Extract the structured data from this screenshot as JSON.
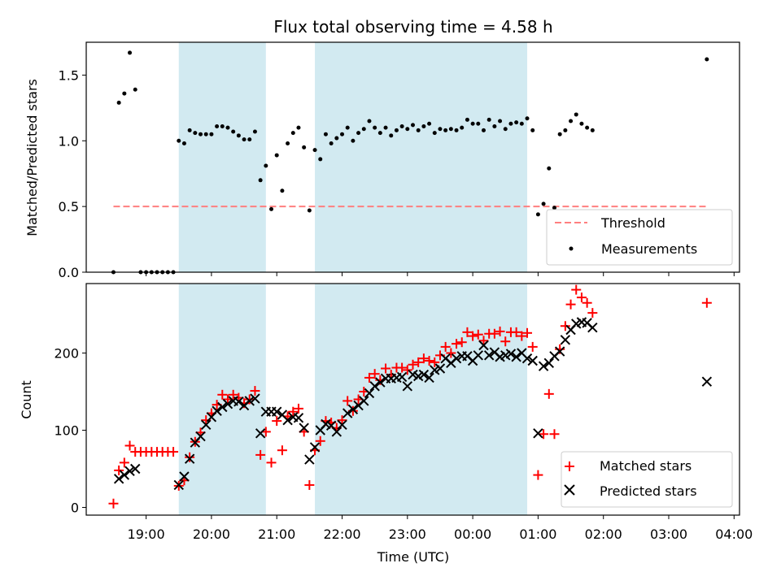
{
  "title": "Flux total observing time = 4.58 h",
  "colors": {
    "band": "#add8e6",
    "threshold": "#ff7f7f",
    "matched": "#ff0000",
    "predicted": "#000000",
    "measurement": "#000000"
  },
  "x_ticks": [
    "19:00",
    "20:00",
    "21:00",
    "22:00",
    "23:00",
    "00:00",
    "01:00",
    "02:00",
    "03:00",
    "04:00"
  ],
  "xlabel": "Time (UTC)",
  "chart_data": [
    {
      "type": "scatter",
      "ylabel": "Matched/Predicted stars",
      "ylim": [
        0,
        1.75
      ],
      "y_ticks": [
        "0.0",
        "0.5",
        "1.0",
        "1.5"
      ],
      "xlim": [
        "18:05",
        "04:05"
      ],
      "shaded_intervals": [
        [
          "19:30",
          "20:50"
        ],
        [
          "21:35",
          "00:50"
        ]
      ],
      "legend": {
        "position": "bottom-right",
        "entries": [
          "Threshold",
          "Measurements"
        ]
      },
      "threshold": {
        "name": "Threshold",
        "y": 0.5,
        "x_range": [
          "18:30",
          "03:35"
        ]
      },
      "measurements": {
        "name": "Measurements",
        "points": [
          [
            "18:30",
            0.0
          ],
          [
            "18:35",
            1.29
          ],
          [
            "18:40",
            1.36
          ],
          [
            "18:45",
            1.67
          ],
          [
            "18:50",
            1.39
          ],
          [
            "18:55",
            0.0
          ],
          [
            "19:00",
            0.0
          ],
          [
            "19:05",
            0.0
          ],
          [
            "19:10",
            0.0
          ],
          [
            "19:15",
            0.0
          ],
          [
            "19:20",
            0.0
          ],
          [
            "19:25",
            0.0
          ],
          [
            "19:30",
            1.0
          ],
          [
            "19:35",
            0.98
          ],
          [
            "19:40",
            1.08
          ],
          [
            "19:45",
            1.06
          ],
          [
            "19:50",
            1.05
          ],
          [
            "19:55",
            1.05
          ],
          [
            "20:00",
            1.05
          ],
          [
            "20:05",
            1.11
          ],
          [
            "20:10",
            1.11
          ],
          [
            "20:15",
            1.1
          ],
          [
            "20:20",
            1.07
          ],
          [
            "20:25",
            1.04
          ],
          [
            "20:30",
            1.01
          ],
          [
            "20:35",
            1.01
          ],
          [
            "20:40",
            1.07
          ],
          [
            "20:45",
            0.7
          ],
          [
            "20:50",
            0.81
          ],
          [
            "20:55",
            0.48
          ],
          [
            "21:00",
            0.89
          ],
          [
            "21:05",
            0.62
          ],
          [
            "21:10",
            0.98
          ],
          [
            "21:15",
            1.06
          ],
          [
            "21:20",
            1.1
          ],
          [
            "21:25",
            0.95
          ],
          [
            "21:30",
            0.47
          ],
          [
            "21:35",
            0.93
          ],
          [
            "21:40",
            0.86
          ],
          [
            "21:45",
            1.05
          ],
          [
            "21:50",
            0.98
          ],
          [
            "21:55",
            1.02
          ],
          [
            "22:00",
            1.05
          ],
          [
            "22:05",
            1.1
          ],
          [
            "22:10",
            1.0
          ],
          [
            "22:15",
            1.06
          ],
          [
            "22:20",
            1.09
          ],
          [
            "22:25",
            1.15
          ],
          [
            "22:30",
            1.1
          ],
          [
            "22:35",
            1.06
          ],
          [
            "22:40",
            1.1
          ],
          [
            "22:45",
            1.04
          ],
          [
            "22:50",
            1.08
          ],
          [
            "22:55",
            1.11
          ],
          [
            "23:00",
            1.09
          ],
          [
            "23:05",
            1.12
          ],
          [
            "23:10",
            1.08
          ],
          [
            "23:15",
            1.11
          ],
          [
            "23:20",
            1.13
          ],
          [
            "23:25",
            1.06
          ],
          [
            "23:30",
            1.09
          ],
          [
            "23:35",
            1.08
          ],
          [
            "23:40",
            1.09
          ],
          [
            "23:45",
            1.08
          ],
          [
            "23:50",
            1.1
          ],
          [
            "23:55",
            1.16
          ],
          [
            "00:00",
            1.13
          ],
          [
            "00:05",
            1.13
          ],
          [
            "00:10",
            1.08
          ],
          [
            "00:15",
            1.16
          ],
          [
            "00:20",
            1.11
          ],
          [
            "00:25",
            1.15
          ],
          [
            "00:30",
            1.09
          ],
          [
            "00:35",
            1.13
          ],
          [
            "00:40",
            1.14
          ],
          [
            "00:45",
            1.13
          ],
          [
            "00:50",
            1.17
          ],
          [
            "00:55",
            1.08
          ],
          [
            "01:00",
            0.44
          ],
          [
            "01:05",
            0.52
          ],
          [
            "01:10",
            0.79
          ],
          [
            "01:15",
            0.49
          ],
          [
            "01:20",
            1.05
          ],
          [
            "01:25",
            1.08
          ],
          [
            "01:30",
            1.15
          ],
          [
            "01:35",
            1.2
          ],
          [
            "01:40",
            1.13
          ],
          [
            "01:45",
            1.1
          ],
          [
            "01:50",
            1.08
          ],
          [
            "03:35",
            1.62
          ]
        ]
      }
    },
    {
      "type": "scatter",
      "ylabel": "Count",
      "ylim": [
        -10,
        290
      ],
      "y_ticks": [
        "0",
        "100",
        "200"
      ],
      "xlim": [
        "18:05",
        "04:05"
      ],
      "shaded_intervals": [
        [
          "19:30",
          "20:50"
        ],
        [
          "21:35",
          "00:50"
        ]
      ],
      "legend": {
        "position": "bottom-right",
        "entries": [
          "Matched stars",
          "Predicted stars"
        ]
      },
      "series": [
        {
          "name": "Matched stars",
          "marker": "+",
          "points": [
            [
              "18:30",
              5
            ],
            [
              "18:35",
              48
            ],
            [
              "18:40",
              58
            ],
            [
              "18:45",
              80
            ],
            [
              "18:50",
              72
            ],
            [
              "18:55",
              72
            ],
            [
              "19:00",
              72
            ],
            [
              "19:05",
              72
            ],
            [
              "19:10",
              72
            ],
            [
              "19:15",
              72
            ],
            [
              "19:20",
              72
            ],
            [
              "19:25",
              72
            ],
            [
              "19:30",
              28
            ],
            [
              "19:35",
              35
            ],
            [
              "19:40",
              65
            ],
            [
              "19:45",
              85
            ],
            [
              "19:50",
              97
            ],
            [
              "19:55",
              113
            ],
            [
              "20:00",
              122
            ],
            [
              "20:05",
              133
            ],
            [
              "20:10",
              146
            ],
            [
              "20:15",
              140
            ],
            [
              "20:20",
              146
            ],
            [
              "20:25",
              142
            ],
            [
              "20:30",
              135
            ],
            [
              "20:35",
              140
            ],
            [
              "20:40",
              151
            ],
            [
              "20:45",
              68
            ],
            [
              "20:50",
              98
            ],
            [
              "20:55",
              58
            ],
            [
              "21:00",
              112
            ],
            [
              "21:05",
              74
            ],
            [
              "21:10",
              118
            ],
            [
              "21:15",
              124
            ],
            [
              "21:20",
              128
            ],
            [
              "21:25",
              98
            ],
            [
              "21:30",
              29
            ],
            [
              "21:35",
              74
            ],
            [
              "21:40",
              86
            ],
            [
              "21:45",
              112
            ],
            [
              "21:50",
              110
            ],
            [
              "21:55",
              103
            ],
            [
              "22:00",
              113
            ],
            [
              "22:05",
              138
            ],
            [
              "22:10",
              125
            ],
            [
              "22:15",
              140
            ],
            [
              "22:20",
              150
            ],
            [
              "22:25",
              168
            ],
            [
              "22:30",
              173
            ],
            [
              "22:35",
              165
            ],
            [
              "22:40",
              180
            ],
            [
              "22:45",
              172
            ],
            [
              "22:50",
              181
            ],
            [
              "22:55",
              181
            ],
            [
              "23:00",
              178
            ],
            [
              "23:05",
              185
            ],
            [
              "23:10",
              188
            ],
            [
              "23:15",
              193
            ],
            [
              "23:20",
              190
            ],
            [
              "23:25",
              188
            ],
            [
              "23:30",
              197
            ],
            [
              "23:35",
              208
            ],
            [
              "23:40",
              200
            ],
            [
              "23:45",
              212
            ],
            [
              "23:50",
              214
            ],
            [
              "23:55",
              227
            ],
            [
              "00:00",
              222
            ],
            [
              "00:05",
              224
            ],
            [
              "00:10",
              216
            ],
            [
              "00:15",
              225
            ],
            [
              "00:20",
              225
            ],
            [
              "00:25",
              228
            ],
            [
              "00:30",
              215
            ],
            [
              "00:35",
              227
            ],
            [
              "00:40",
              227
            ],
            [
              "00:45",
              222
            ],
            [
              "00:50",
              226
            ],
            [
              "00:55",
              208
            ],
            [
              "01:00",
              42
            ],
            [
              "01:05",
              95
            ],
            [
              "01:10",
              147
            ],
            [
              "01:15",
              95
            ],
            [
              "01:20",
              205
            ],
            [
              "01:25",
              235
            ],
            [
              "01:30",
              263
            ],
            [
              "01:35",
              282
            ],
            [
              "01:40",
              272
            ],
            [
              "01:45",
              265
            ],
            [
              "01:50",
              252
            ],
            [
              "03:35",
              265
            ]
          ]
        },
        {
          "name": "Predicted stars",
          "marker": "x",
          "points": [
            [
              "18:35",
              37
            ],
            [
              "18:40",
              42
            ],
            [
              "18:45",
              47
            ],
            [
              "18:50",
              50
            ],
            [
              "19:30",
              29
            ],
            [
              "19:35",
              40
            ],
            [
              "19:40",
              63
            ],
            [
              "19:45",
              84
            ],
            [
              "19:50",
              92
            ],
            [
              "19:55",
              107
            ],
            [
              "20:00",
              117
            ],
            [
              "20:05",
              125
            ],
            [
              "20:10",
              130
            ],
            [
              "20:15",
              134
            ],
            [
              "20:20",
              138
            ],
            [
              "20:25",
              137
            ],
            [
              "20:30",
              132
            ],
            [
              "20:35",
              138
            ],
            [
              "20:40",
              141
            ],
            [
              "20:45",
              96
            ],
            [
              "20:50",
              124
            ],
            [
              "20:55",
              124
            ],
            [
              "21:00",
              124
            ],
            [
              "21:05",
              120
            ],
            [
              "21:10",
              113
            ],
            [
              "21:15",
              117
            ],
            [
              "21:20",
              116
            ],
            [
              "21:25",
              103
            ],
            [
              "21:30",
              62
            ],
            [
              "21:35",
              78
            ],
            [
              "21:40",
              100
            ],
            [
              "21:45",
              108
            ],
            [
              "21:50",
              106
            ],
            [
              "21:55",
              98
            ],
            [
              "22:00",
              107
            ],
            [
              "22:05",
              122
            ],
            [
              "22:10",
              127
            ],
            [
              "22:15",
              132
            ],
            [
              "22:20",
              138
            ],
            [
              "22:25",
              148
            ],
            [
              "22:30",
              157
            ],
            [
              "22:35",
              162
            ],
            [
              "22:40",
              167
            ],
            [
              "22:45",
              167
            ],
            [
              "22:50",
              168
            ],
            [
              "22:55",
              169
            ],
            [
              "23:00",
              157
            ],
            [
              "23:05",
              172
            ],
            [
              "23:10",
              170
            ],
            [
              "23:15",
              172
            ],
            [
              "23:20",
              168
            ],
            [
              "23:25",
              178
            ],
            [
              "23:30",
              180
            ],
            [
              "23:35",
              193
            ],
            [
              "23:40",
              187
            ],
            [
              "23:45",
              193
            ],
            [
              "23:50",
              196
            ],
            [
              "23:55",
              196
            ],
            [
              "00:00",
              190
            ],
            [
              "00:05",
              197
            ],
            [
              "00:10",
              210
            ],
            [
              "00:15",
              197
            ],
            [
              "00:20",
              201
            ],
            [
              "00:25",
              195
            ],
            [
              "00:30",
              197
            ],
            [
              "00:35",
              199
            ],
            [
              "00:40",
              195
            ],
            [
              "00:45",
              200
            ],
            [
              "00:50",
              193
            ],
            [
              "00:55",
              190
            ],
            [
              "01:00",
              96
            ],
            [
              "01:05",
              183
            ],
            [
              "01:10",
              187
            ],
            [
              "01:15",
              196
            ],
            [
              "01:20",
              202
            ],
            [
              "01:25",
              217
            ],
            [
              "01:30",
              230
            ],
            [
              "01:35",
              238
            ],
            [
              "01:40",
              240
            ],
            [
              "01:45",
              239
            ],
            [
              "01:50",
              233
            ],
            [
              "03:35",
              163
            ]
          ]
        }
      ]
    }
  ]
}
